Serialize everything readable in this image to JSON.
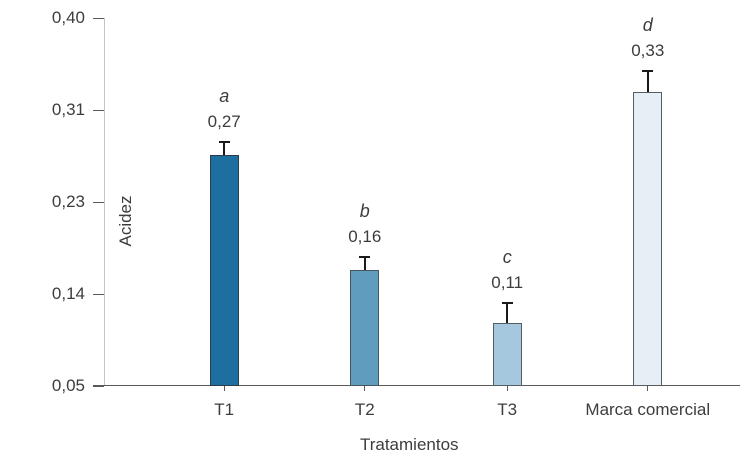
{
  "chart_data": {
    "type": "bar",
    "title": "",
    "xlabel": "Tratamientos",
    "ylabel": "Acidez",
    "categories": [
      "T1",
      "T2",
      "T3",
      "Marca comercial"
    ],
    "values": [
      0.27,
      0.16,
      0.11,
      0.33
    ],
    "value_labels": [
      "0,27",
      "0,16",
      "0,11",
      "0,33"
    ],
    "significance_letters": [
      "a",
      "b",
      "c",
      "d"
    ],
    "errors": [
      0.011,
      0.012,
      0.018,
      0.019
    ],
    "ylim": [
      0.05,
      0.4
    ],
    "yticks": [
      0.4,
      0.31,
      0.23,
      0.14,
      0.05
    ],
    "ytick_labels": [
      "0,40",
      "0,31",
      "0,23",
      "0,14",
      "0,05"
    ],
    "grid": false,
    "legend": "none",
    "bar_colors": [
      "#1d6fa0",
      "#5f9cbe",
      "#a5c8de",
      "#e8eef6"
    ],
    "bar_border_colors": [
      "#2e3c49",
      "#47565f",
      "#525d64",
      "#555d62"
    ],
    "error_bar_color": "#1a1a1a",
    "x_axis_line_color": "#595959",
    "y_axis_line_color": "#c4c4c4",
    "text_color": "#3d3d3d",
    "background_color": "#ffffff"
  }
}
